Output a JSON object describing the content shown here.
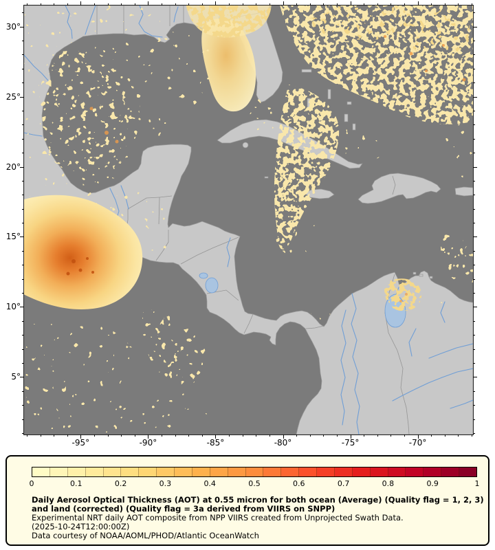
{
  "colors": {
    "page_bg": "#ffffff",
    "ocean": "#7b7b7b",
    "land": "#c8c8c8",
    "coast": "#979797",
    "border_line": "#8f8f8f",
    "river": "#6f9ed6",
    "lake": "#a9c4e1",
    "aerosol_pale": "#f9e7ab",
    "aerosol_light": "#f4d88b",
    "aerosol_orange": "#ee9c4a",
    "aerosol_deep": "#c2520f",
    "legend_bg": "#fffce5",
    "legend_border": "#000000",
    "axis_text": "#000000"
  },
  "map": {
    "axis": {
      "lon_min": -99.2,
      "lon_max": -65.9,
      "lat_min": 0.9,
      "lat_max": 31.5,
      "lon_ticks": [
        {
          "value": -95,
          "label": "-95°"
        },
        {
          "value": -90,
          "label": "-90°"
        },
        {
          "value": -85,
          "label": "-85°"
        },
        {
          "value": -80,
          "label": "-80°"
        },
        {
          "value": -75,
          "label": "-75°"
        },
        {
          "value": -70,
          "label": "-70°"
        }
      ],
      "lat_ticks": [
        {
          "value": 30,
          "label": "30°"
        },
        {
          "value": 25,
          "label": "25°"
        },
        {
          "value": 20,
          "label": "20°"
        },
        {
          "value": 15,
          "label": "15°"
        },
        {
          "value": 10,
          "label": "10°"
        },
        {
          "value": 5,
          "label": "5°"
        }
      ]
    }
  },
  "legend": {
    "colorbar": {
      "min": 0,
      "max": 1,
      "segments": 25,
      "tick_labels": [
        "0",
        "0.1",
        "0.2",
        "0.3",
        "0.4",
        "0.5",
        "0.6",
        "0.7",
        "0.8",
        "0.9",
        "1"
      ],
      "colormap_stops": [
        "#ffffcc",
        "#ffeda0",
        "#fed976",
        "#feb24c",
        "#fd8d3c",
        "#fc4e2a",
        "#e31a1c",
        "#bd0026",
        "#800026"
      ]
    },
    "title": "Daily Aerosol Optical Thickness (AOT) at 0.55 micron for both ocean (Average) (Quality flag = 1, 2, 3) and land (corrected) (Quality flag = 3a derived from VIIRS on SNPP)",
    "line2": "Experimental NRT daily AOT composite from NPP VIIRS created from Unprojected Swath Data.",
    "line3": "(2025-10-24T12:00:00Z)",
    "line4": "Data courtesy of NOAA/AOML/PHOD/Atlantic OceanWatch"
  },
  "chart_data": {
    "type": "heatmap",
    "variable": "Daily Aerosol Optical Thickness (AOT) at 0.55 micron",
    "date_shown": "2025-10-24T12:00:00Z",
    "colorbar_range": [
      0,
      1
    ],
    "colorbar_ticks": [
      0,
      0.1,
      0.2,
      0.3,
      0.4,
      0.5,
      0.6,
      0.7,
      0.8,
      0.9,
      1
    ],
    "colormap_stops": [
      "#ffffcc",
      "#ffeda0",
      "#fed976",
      "#feb24c",
      "#fd8d3c",
      "#fc4e2a",
      "#e31a1c",
      "#bd0026",
      "#800026"
    ],
    "lon_range": [
      -99.2,
      -65.9
    ],
    "lat_range": [
      0.9,
      31.5
    ],
    "region": "Gulf of Mexico, Caribbean Sea, Central America and northern South America"
  }
}
